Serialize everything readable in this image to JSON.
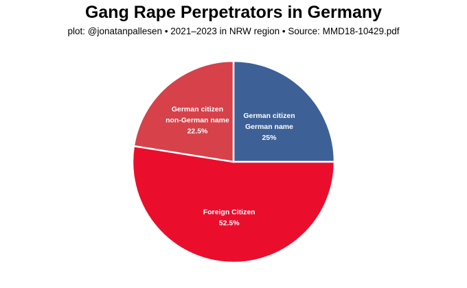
{
  "chart_data": {
    "type": "pie",
    "title": "Gang Rape Perpetrators in Germany",
    "subtitle": "plot: @jonatanpallesen • 2021–2023 in NRW region • Source: MMD18-10429.pdf",
    "slices": [
      {
        "label_lines": [
          "German citizen",
          "German name"
        ],
        "value": 25,
        "value_label": "25%",
        "color": "#3d6196"
      },
      {
        "label_lines": [
          "Foreign Citizen"
        ],
        "value": 52.5,
        "value_label": "52.5%",
        "color": "#ea0e2c"
      },
      {
        "label_lines": [
          "German citizen",
          "non-German name"
        ],
        "value": 22.5,
        "value_label": "22.5%",
        "color": "#d6414a"
      }
    ],
    "start_angle": "12 o'clock",
    "direction": "clockwise"
  }
}
